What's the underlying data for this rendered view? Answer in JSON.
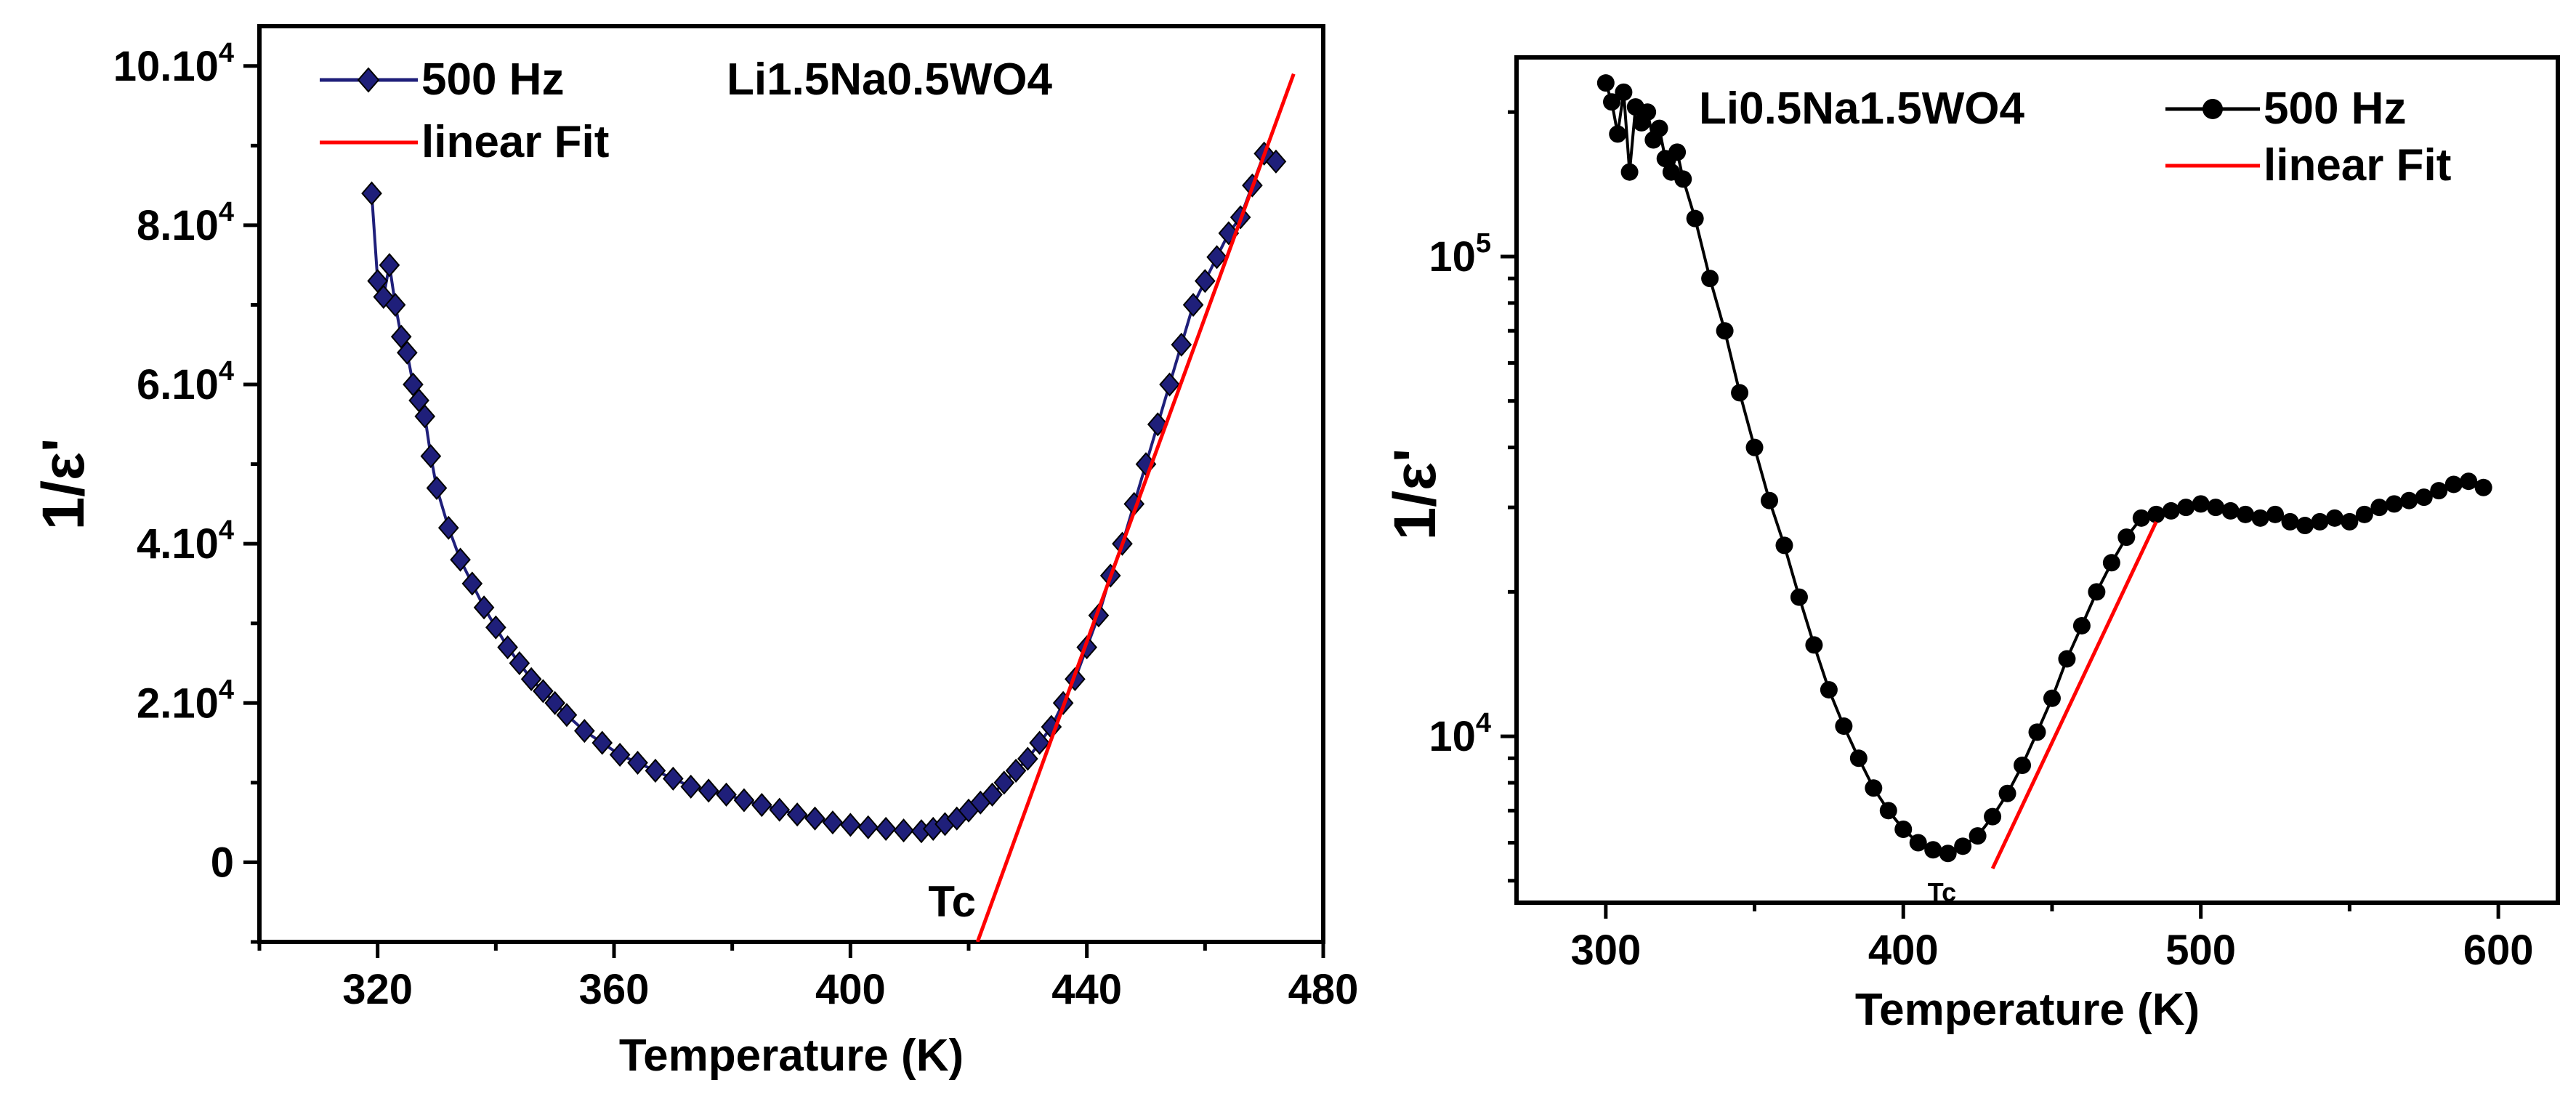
{
  "chart_data": [
    {
      "type": "line",
      "title": "Li1.5Na0.5WO4",
      "xlabel": "Temperature (K)",
      "ylabel": "1/ε'",
      "xlim": [
        300,
        480
      ],
      "ylim": [
        -10000,
        105000
      ],
      "y_scale": "linear",
      "x_ticks": [
        320,
        360,
        400,
        440,
        480
      ],
      "x_tick_labels": [
        "320",
        "360",
        "400",
        "440",
        "480"
      ],
      "y_ticks": [
        0,
        20000,
        40000,
        60000,
        80000,
        100000
      ],
      "y_tick_labels": [
        {
          "base": "0",
          "exp": ""
        },
        {
          "base": "2.10",
          "exp": "4"
        },
        {
          "base": "4.10",
          "exp": "4"
        },
        {
          "base": "6.10",
          "exp": "4"
        },
        {
          "base": "8.10",
          "exp": "4"
        },
        {
          "base": "10.10",
          "exp": "4"
        }
      ],
      "legend": {
        "placement": "top-left",
        "entries": [
          "500 Hz",
          "linear Fit"
        ]
      },
      "series": [
        {
          "name": "500 Hz",
          "color": "#1f1f7a",
          "marker": "diamond",
          "x": [
            319,
            320,
            321,
            322,
            323,
            324,
            325,
            326,
            327,
            328,
            329,
            330,
            332,
            334,
            336,
            338,
            340,
            342,
            344,
            346,
            348,
            350,
            352,
            355,
            358,
            361,
            364,
            367,
            370,
            373,
            376,
            379,
            382,
            385,
            388,
            391,
            394,
            397,
            400,
            403,
            406,
            409,
            412,
            414,
            416,
            418,
            420,
            422,
            424,
            426,
            428,
            430,
            432,
            434,
            436,
            438,
            440,
            442,
            444,
            446,
            448,
            450,
            452,
            454,
            456,
            458,
            460,
            462,
            464,
            466,
            468,
            470,
            472
          ],
          "y": [
            84000,
            73000,
            71000,
            75000,
            70000,
            66000,
            64000,
            60000,
            58000,
            56000,
            51000,
            47000,
            42000,
            38000,
            35000,
            32000,
            29500,
            27000,
            25000,
            23000,
            21500,
            20000,
            18500,
            16500,
            15000,
            13500,
            12500,
            11500,
            10500,
            9500,
            9000,
            8500,
            7800,
            7200,
            6600,
            6000,
            5500,
            5000,
            4700,
            4400,
            4200,
            4000,
            3900,
            4200,
            4800,
            5500,
            6500,
            7500,
            8500,
            10000,
            11500,
            13000,
            15000,
            17000,
            20000,
            23000,
            27000,
            31000,
            36000,
            40000,
            45000,
            50000,
            55000,
            60000,
            65000,
            70000,
            73000,
            76000,
            79000,
            81000,
            85000,
            89000,
            88000
          ]
        },
        {
          "name": "linear Fit",
          "color": "#ff0000",
          "x": [
            421.5,
            475
          ],
          "y": [
            -10000,
            99000
          ]
        }
      ],
      "annotations": [
        {
          "text": "Tc",
          "x": 420,
          "y": -5000
        }
      ]
    },
    {
      "type": "line",
      "title": "Li0.5Na1.5WO4",
      "xlabel": "Temperature (K)",
      "ylabel": "1/ε'",
      "xlim": [
        270,
        620
      ],
      "ylim": [
        4500,
        260000
      ],
      "y_scale": "log",
      "x_ticks": [
        300,
        400,
        500,
        600
      ],
      "x_tick_labels": [
        "300",
        "400",
        "500",
        "600"
      ],
      "y_ticks": [
        10000,
        100000
      ],
      "y_tick_labels": [
        {
          "base": "10",
          "exp": "4"
        },
        {
          "base": "10",
          "exp": "5"
        }
      ],
      "legend": {
        "placement": "top-right",
        "entries": [
          "500 Hz",
          "linear Fit"
        ]
      },
      "series": [
        {
          "name": "500 Hz",
          "color": "#000000",
          "marker": "circle",
          "x": [
            300,
            302,
            304,
            306,
            308,
            310,
            312,
            314,
            316,
            318,
            320,
            322,
            324,
            326,
            330,
            335,
            340,
            345,
            350,
            355,
            360,
            365,
            370,
            375,
            380,
            385,
            390,
            395,
            400,
            405,
            410,
            415,
            420,
            425,
            430,
            435,
            440,
            445,
            450,
            455,
            460,
            465,
            470,
            475,
            480,
            485,
            490,
            495,
            500,
            505,
            510,
            515,
            520,
            525,
            530,
            535,
            540,
            545,
            550,
            555,
            560,
            565,
            570,
            575,
            580,
            585,
            590,
            595
          ],
          "y": [
            230000,
            210000,
            180000,
            220000,
            150000,
            205000,
            190000,
            200000,
            175000,
            185000,
            160000,
            150000,
            165000,
            145000,
            120000,
            90000,
            70000,
            52000,
            40000,
            31000,
            25000,
            19500,
            15500,
            12500,
            10500,
            9000,
            7800,
            7000,
            6400,
            6000,
            5800,
            5700,
            5900,
            6200,
            6800,
            7600,
            8700,
            10200,
            12000,
            14500,
            17000,
            20000,
            23000,
            26000,
            28500,
            29000,
            29500,
            30000,
            30500,
            30000,
            29500,
            29000,
            28500,
            29000,
            28000,
            27500,
            28000,
            28500,
            28000,
            29000,
            30000,
            30500,
            31000,
            31500,
            32500,
            33500,
            34000,
            33000
          ]
        },
        {
          "name": "linear Fit",
          "color": "#ff0000",
          "x": [
            430,
            485
          ],
          "y": [
            5300,
            28000
          ]
        }
      ],
      "annotations": [
        {
          "text": "Tc",
          "x": 413,
          "y": 5300
        }
      ]
    }
  ]
}
